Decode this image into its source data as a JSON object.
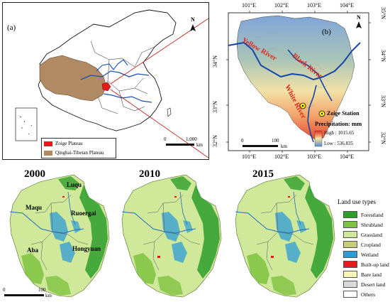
{
  "panel_a": {
    "label": "(a)",
    "north": "N",
    "scale_start": "0",
    "scale_end": "1,000",
    "scale_unit": "km",
    "legend": [
      {
        "label": "Zoige Plateau",
        "color": "#e01b1b"
      },
      {
        "label": "Qinghai-Tibetan Plateau",
        "color": "#b08a63"
      }
    ]
  },
  "panel_b": {
    "label": "(b)",
    "north": "N",
    "top_ticks": [
      "101°E",
      "102°E",
      "103°E",
      "104°E"
    ],
    "bottom_ticks": [
      "101°E",
      "102°E",
      "103°E",
      "104°E"
    ],
    "left_ticks": [
      "34°N",
      "33°N",
      "32°N"
    ],
    "right_ticks": [
      "35°N",
      "34°N",
      "33°N",
      "32°N"
    ],
    "rivers": {
      "yellow": "Yellow River",
      "black": "Black River",
      "white": "White River"
    },
    "station": "Zoige Station",
    "precip_title": "Precipitation: mm",
    "precip_high": "High : 1015.65",
    "precip_low": "Low : 536.835",
    "scale_start": "0",
    "scale_end": "100",
    "scale_unit": "km"
  },
  "landuse": {
    "years": [
      "2000",
      "2010",
      "2015"
    ],
    "places": {
      "luqu": "Luqu",
      "maqu": "Maqu",
      "ruoergai": "Ruoergai",
      "aba": "Aba",
      "hongyuan": "Hongyuan"
    },
    "scale_start": "0",
    "scale_end": "100",
    "scale_unit": "km",
    "legend_title": "Land use types",
    "legend": [
      {
        "label": "Forestland",
        "color": "#2e9e2a"
      },
      {
        "label": "Shrubland",
        "color": "#7fc241"
      },
      {
        "label": "Grassland",
        "color": "#cfe89a"
      },
      {
        "label": "Cropland",
        "color": "#c9cc7a"
      },
      {
        "label": "Wetland",
        "color": "#2d9bd6"
      },
      {
        "label": "Built-up land",
        "color": "#e41a1c"
      },
      {
        "label": "Bare land",
        "color": "#f7f4b4"
      },
      {
        "label": "Desert land",
        "color": "#d9d9d9"
      },
      {
        "label": "Others",
        "color": "#ffffff"
      }
    ]
  }
}
